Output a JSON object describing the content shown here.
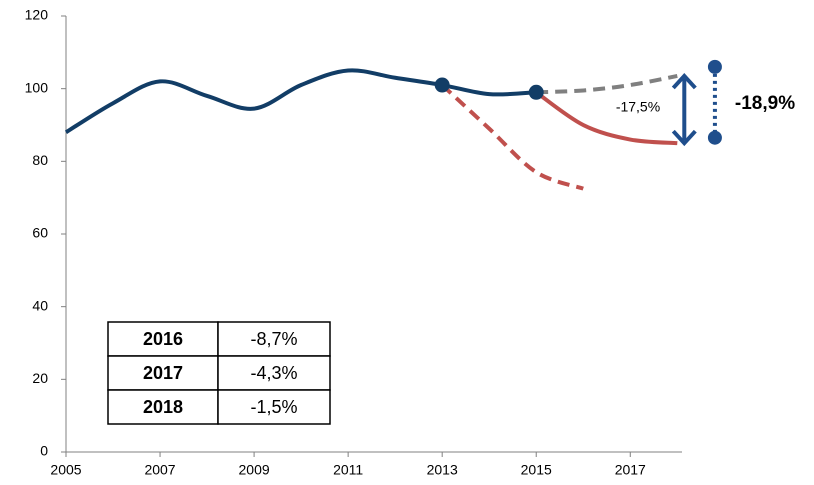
{
  "chart_data": {
    "type": "line",
    "x": [
      2005,
      2006,
      2007,
      2008,
      2009,
      2010,
      2011,
      2012,
      2013,
      2014,
      2015,
      2016,
      2017,
      2018
    ],
    "series": [
      {
        "color": "#123d66",
        "dash": false,
        "values": [
          88,
          96,
          102,
          98,
          94.5,
          101,
          105,
          103,
          101,
          98.5,
          99,
          null,
          null,
          null
        ]
      },
      {
        "color": "#c0504d",
        "dash": true,
        "values": [
          null,
          null,
          null,
          null,
          null,
          null,
          null,
          null,
          101,
          89,
          77,
          72.5,
          null,
          null
        ]
      },
      {
        "color": "#c0504d",
        "dash": false,
        "values": [
          null,
          null,
          null,
          null,
          null,
          null,
          null,
          null,
          null,
          null,
          99,
          90,
          86,
          85
        ]
      },
      {
        "color": "#808080",
        "dash": true,
        "values": [
          null,
          null,
          null,
          null,
          null,
          null,
          null,
          null,
          null,
          null,
          99,
          99.5,
          101,
          103.5
        ]
      }
    ],
    "xlim": [
      2005,
      2018.1
    ],
    "ylim": [
      0,
      120
    ],
    "xticks": [
      2005,
      2007,
      2009,
      2011,
      2013,
      2015,
      2017
    ],
    "yticks": [
      0,
      20,
      40,
      60,
      80,
      100,
      120
    ],
    "bracket": {
      "x": 2018.8,
      "values": [
        106,
        86.5
      ],
      "color": "#1f4e8c"
    },
    "annotations": [
      "-17,5%",
      "-18,9%"
    ],
    "table": [
      [
        "2016",
        "-8,7%"
      ],
      [
        "2017",
        "-4,3%"
      ],
      [
        "2018",
        "-1,5%"
      ]
    ]
  }
}
